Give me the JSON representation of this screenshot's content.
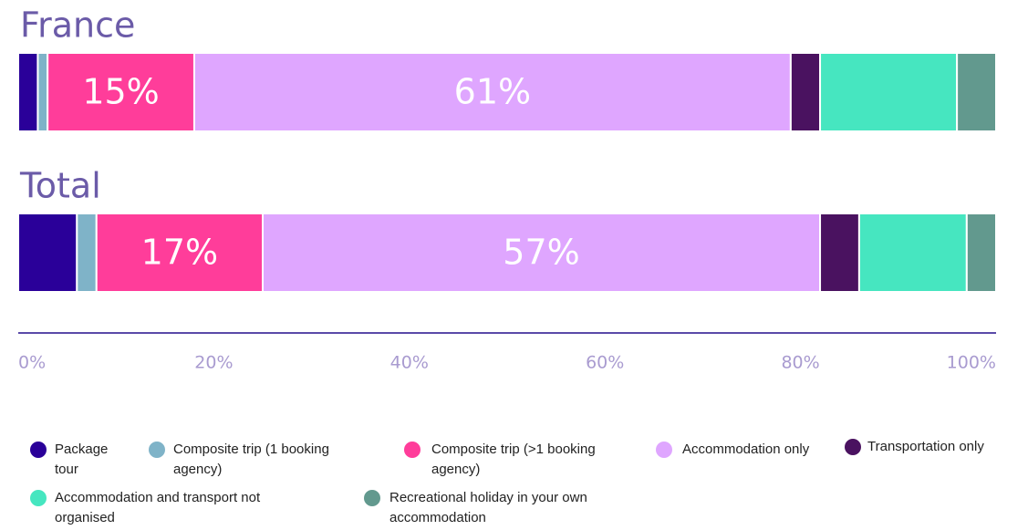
{
  "chart_data": {
    "type": "stacked_bar_horizontal",
    "categories": [
      "France",
      "Total"
    ],
    "series": [
      {
        "name": "Package tour",
        "color": "#2a0099",
        "values": [
          2,
          6
        ]
      },
      {
        "name": "Composite trip (1 booking agency)",
        "color": "#7fb3c8",
        "values": [
          1,
          2
        ]
      },
      {
        "name": "Composite trip (>1 booking agency)",
        "color": "#ff3d9a",
        "values": [
          15,
          17
        ],
        "value_labels": [
          "15%",
          "17%"
        ]
      },
      {
        "name": "Accommodation only",
        "color": "#dfa6ff",
        "values": [
          61,
          57
        ],
        "value_labels": [
          "61%",
          "57%"
        ]
      },
      {
        "name": "Transportation only",
        "color": "#4a1260",
        "values": [
          3,
          4
        ]
      },
      {
        "name": "Accommodation and transport not organised",
        "color": "#46e6c0",
        "values": [
          14,
          11
        ]
      },
      {
        "name": "Recreational holiday in your own accommodation",
        "color": "#62998e",
        "values": [
          4,
          3
        ]
      }
    ],
    "xlim": [
      0,
      100
    ],
    "xticks": [
      {
        "value": 0,
        "label": "0%"
      },
      {
        "value": 20,
        "label": "20%"
      },
      {
        "value": 40,
        "label": "40%"
      },
      {
        "value": 60,
        "label": "60%"
      },
      {
        "value": 80,
        "label": "80%"
      },
      {
        "value": 100,
        "label": "100%"
      }
    ]
  }
}
